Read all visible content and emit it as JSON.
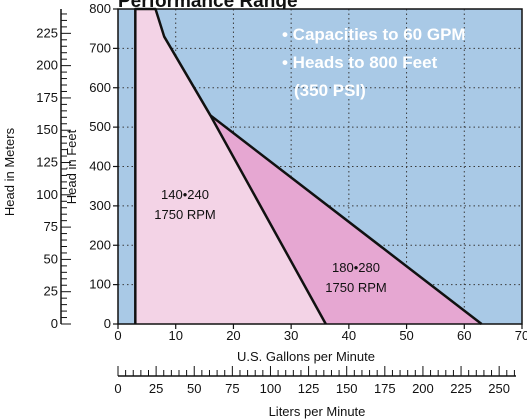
{
  "chart_data": {
    "type": "area",
    "title": "Performance Range",
    "xlabel": "U.S. Gallons per Minute",
    "ylabel": "Head in Feet",
    "xlim": [
      0,
      70
    ],
    "ylim": [
      0,
      800
    ],
    "x_ticks": [
      0,
      10,
      20,
      30,
      40,
      50,
      60,
      70
    ],
    "y_ticks": [
      0,
      100,
      200,
      300,
      400,
      500,
      600,
      700,
      800
    ],
    "secondary_y": {
      "label": "Head in Meters",
      "ticks": [
        0,
        25,
        50,
        75,
        100,
        125,
        150,
        175,
        200,
        225
      ]
    },
    "secondary_x": {
      "label": "Liters per Minute",
      "ticks": [
        0,
        25,
        50,
        75,
        100,
        125,
        150,
        175,
        200,
        225,
        250
      ]
    },
    "grid": true,
    "background_color": "#a9c9e6",
    "callouts": [
      "• Capacities to 60 GPM",
      "• Heads to 800 Feet",
      "(350 PSI)"
    ],
    "series": [
      {
        "name": "140•240",
        "sublabel": "1750 RPM",
        "color": "#f3d3e6",
        "points": [
          [
            3,
            0
          ],
          [
            3,
            800
          ],
          [
            6.5,
            800
          ],
          [
            8,
            730
          ],
          [
            16,
            530
          ],
          [
            36,
            0
          ]
        ]
      },
      {
        "name": "180•280",
        "sublabel": "1750 RPM",
        "color": "#e6a7d2",
        "points": [
          [
            16,
            530
          ],
          [
            63,
            0
          ],
          [
            36,
            0
          ]
        ]
      }
    ]
  }
}
